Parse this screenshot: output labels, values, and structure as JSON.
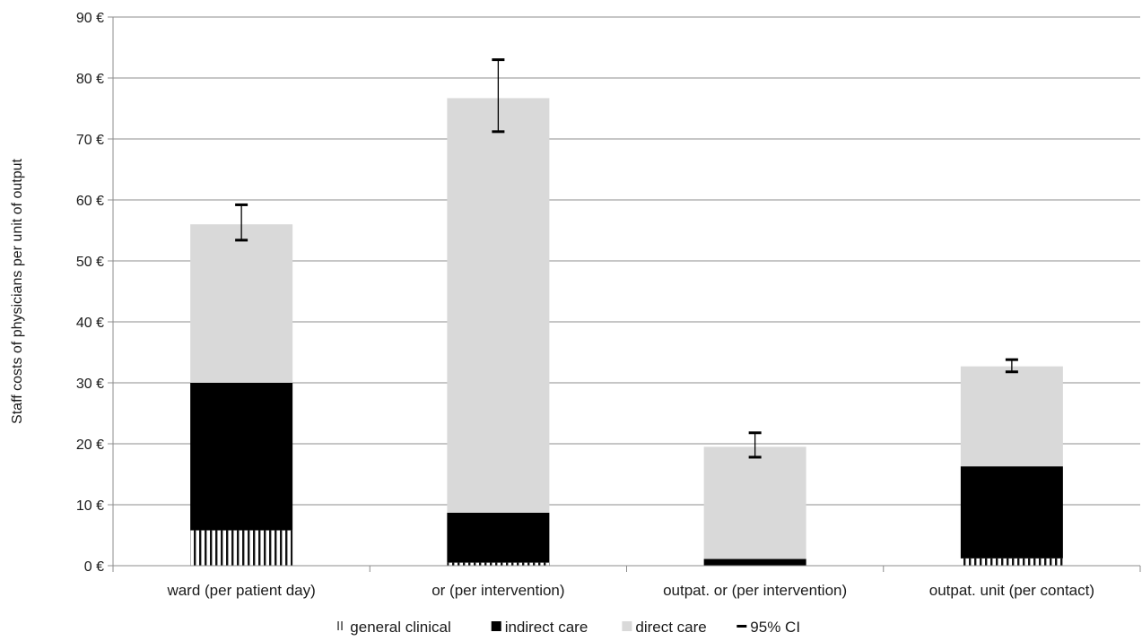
{
  "chart_data": {
    "type": "bar",
    "stacked": true,
    "ylabel": "Staff costs of physicians per unit of output",
    "ylim": [
      0,
      90
    ],
    "ytick_step": 10,
    "y_unit_suffix": " €",
    "grid": true,
    "legend_position": "bottom",
    "categories": [
      "ward (per patient day)",
      "or (per intervention)",
      "outpat. or (per intervention)",
      "outpat. unit (per contact)"
    ],
    "series": [
      {
        "name": "general clinical",
        "values": [
          5.8,
          0.5,
          0.0,
          1.2
        ],
        "color": "#ffffff",
        "pattern": "vertical-hatch"
      },
      {
        "name": "indirect care",
        "values": [
          24.2,
          8.2,
          1.1,
          15.1
        ],
        "color": "#000000"
      },
      {
        "name": "direct care",
        "values": [
          26.0,
          68.0,
          18.4,
          16.4
        ],
        "color": "#d9d9d9"
      }
    ],
    "error_bars": {
      "name": "95% CI",
      "lower": [
        53.4,
        71.2,
        17.8,
        31.8
      ],
      "upper": [
        59.2,
        83.0,
        21.8,
        33.8
      ]
    }
  }
}
